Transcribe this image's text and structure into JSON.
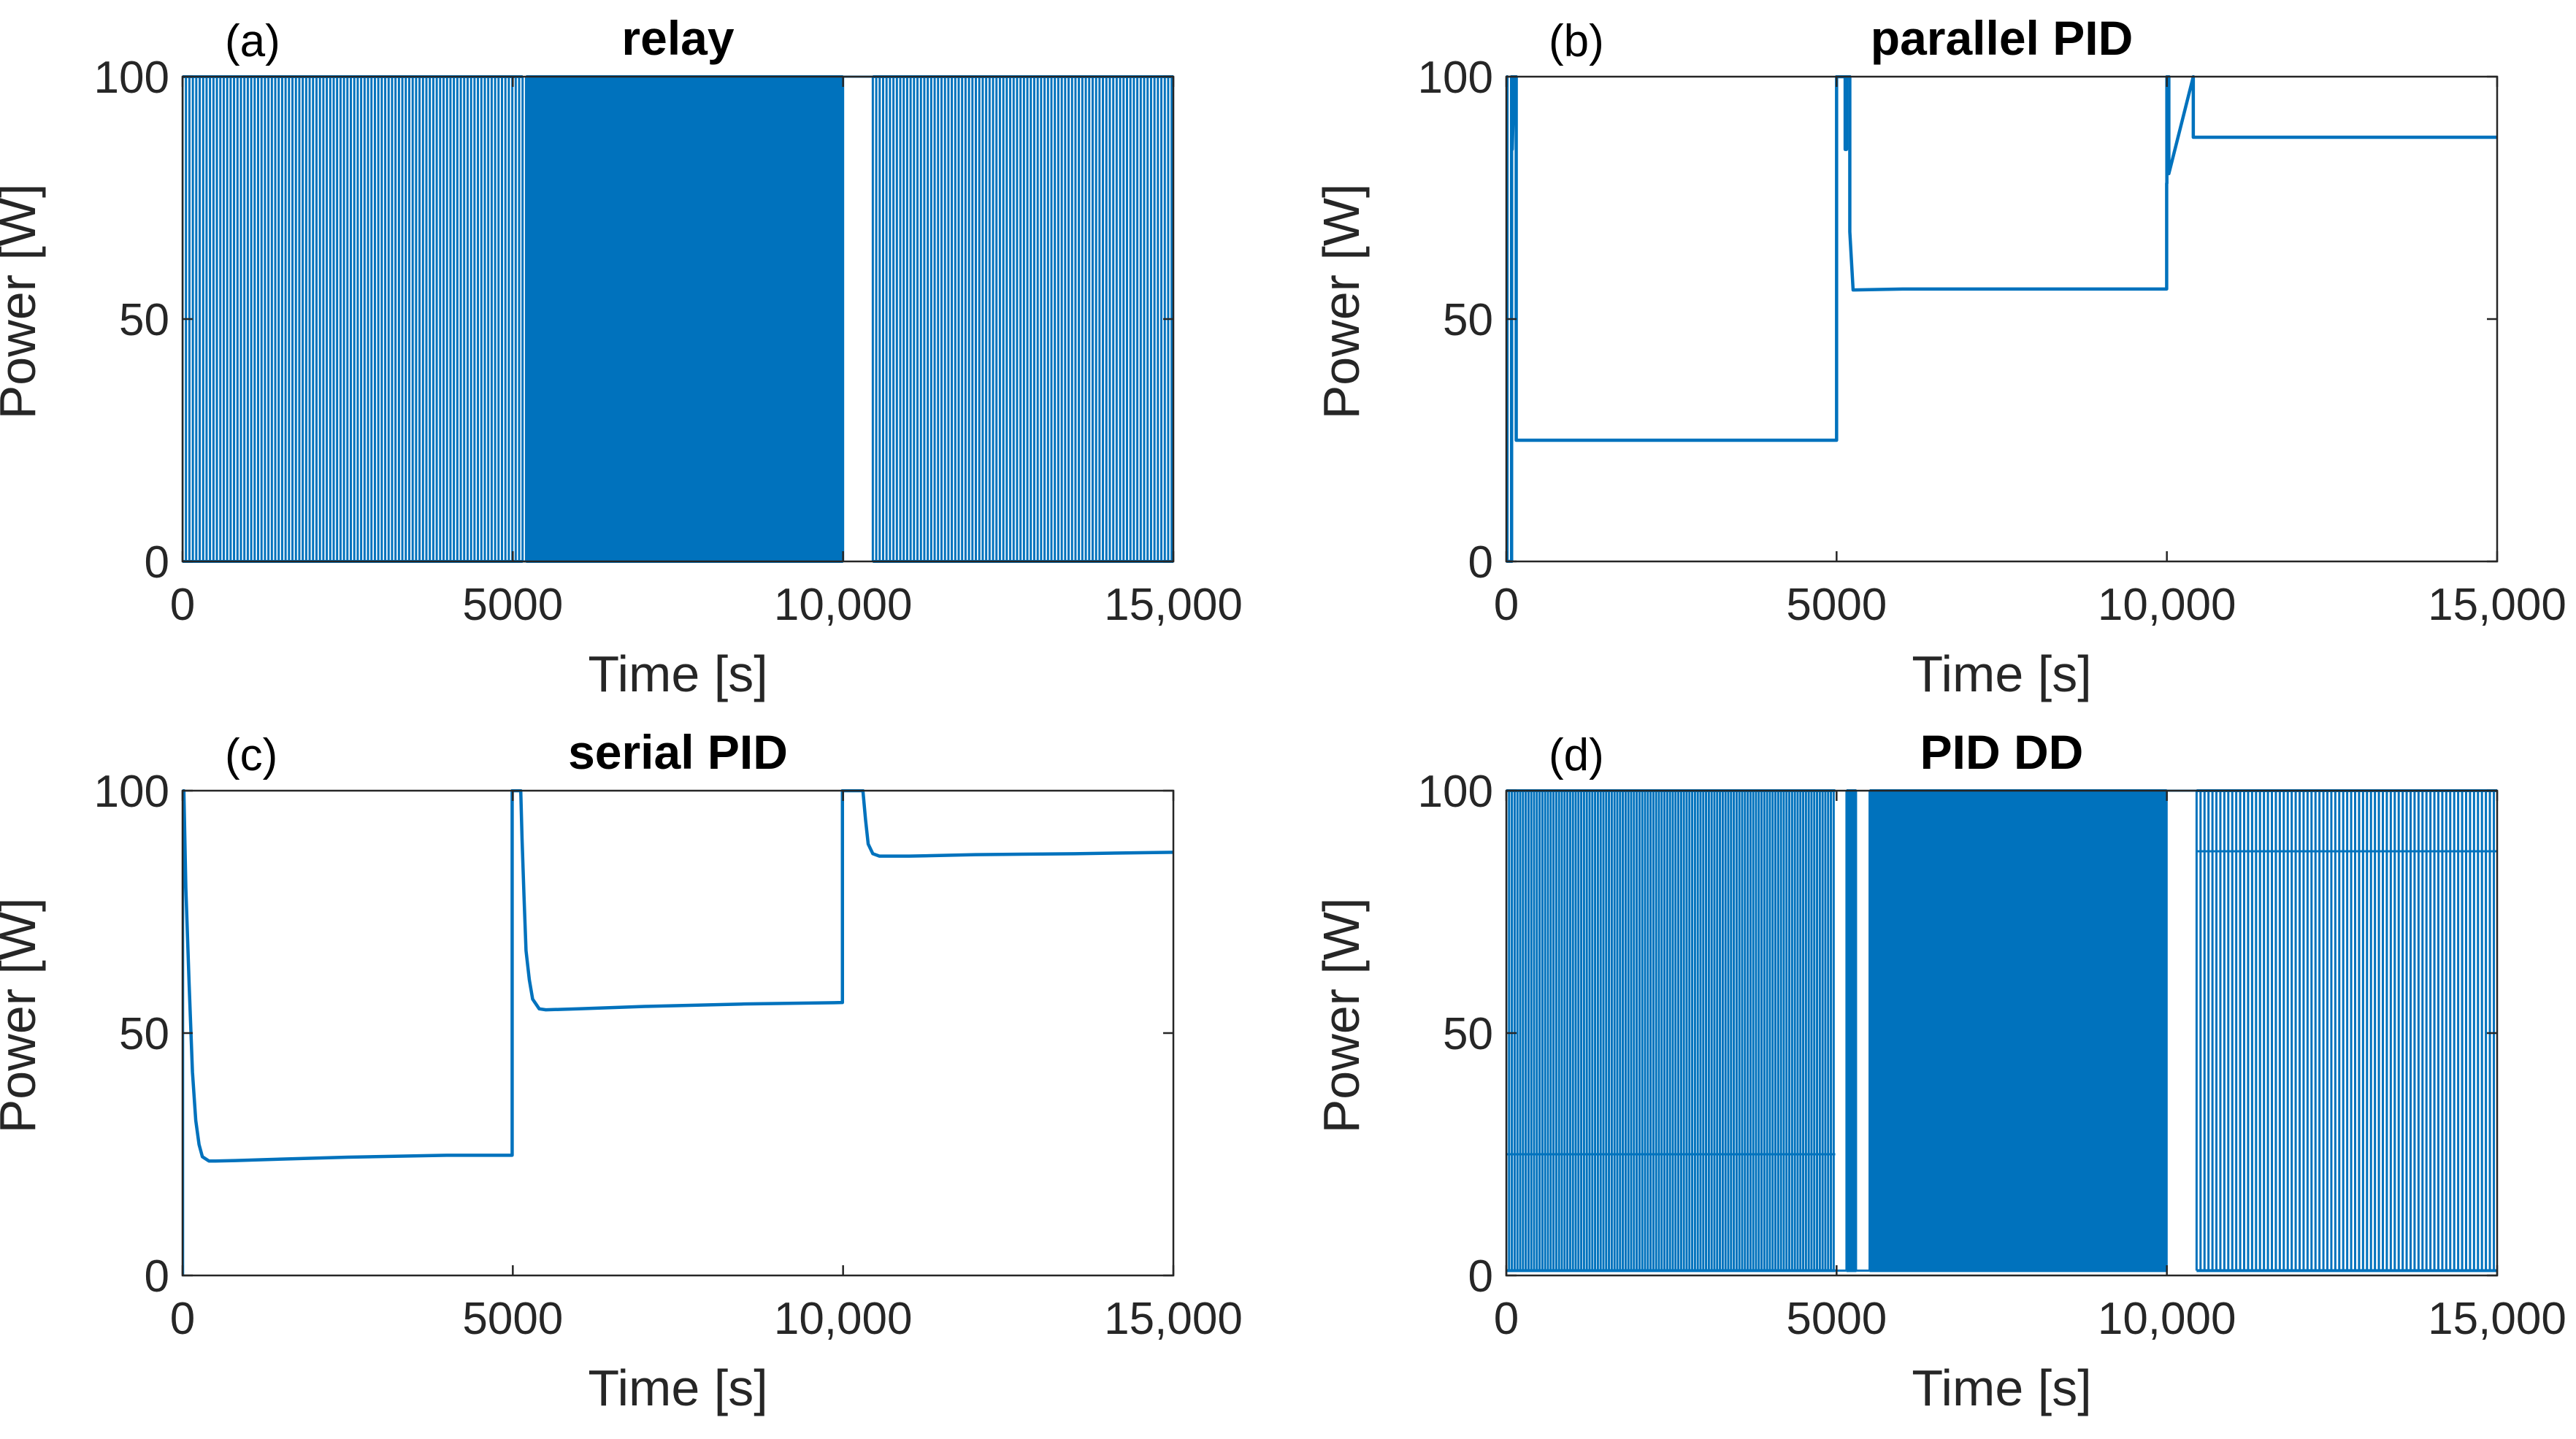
{
  "colors": {
    "series": "#0072BD",
    "axis": "#262626"
  },
  "chart_data": [
    {
      "type": "line",
      "panel_label": "(a)",
      "title": "relay",
      "xlabel": "Time [s]",
      "ylabel": "Power [W]",
      "xlim": [
        0,
        15000
      ],
      "ylim": [
        0,
        100
      ],
      "xticks": [
        0,
        5000,
        10000,
        15000
      ],
      "xtick_labels": [
        "0",
        "5000",
        "10,000",
        "15,000"
      ],
      "yticks": [
        0,
        50,
        100
      ],
      "ytick_labels": [
        "0",
        "50",
        "100"
      ],
      "description": "on/off relay switching between 0 and 100 W",
      "switching": [
        {
          "t_start": 0,
          "t_end": 5150,
          "low": 0,
          "high": 100,
          "period_s": 52
        },
        {
          "t_start": 5200,
          "t_end": 10000,
          "low": 0,
          "high": 100,
          "period_s": 8
        },
        {
          "t_start": 10450,
          "t_end": 15000,
          "low": 0,
          "high": 100,
          "period_s": 52
        }
      ],
      "segments": [
        {
          "x": [
            5150,
            5200
          ],
          "y": [
            0,
            0
          ]
        },
        {
          "x": [
            10000,
            10450
          ],
          "y": [
            100,
            100
          ]
        }
      ]
    },
    {
      "type": "line",
      "panel_label": "(b)",
      "title": "parallel PID",
      "xlabel": "Time [s]",
      "ylabel": "Power [W]",
      "xlim": [
        0,
        15000
      ],
      "ylim": [
        0,
        100
      ],
      "xticks": [
        0,
        5000,
        10000,
        15000
      ],
      "xtick_labels": [
        "0",
        "5000",
        "10,000",
        "15,000"
      ],
      "yticks": [
        0,
        50,
        100
      ],
      "ytick_labels": [
        "0",
        "50",
        "100"
      ],
      "series": [
        {
          "name": "power",
          "x": [
            0,
            0,
            10,
            10,
            80,
            80,
            90,
            90,
            120,
            150,
            150,
            5000,
            5000,
            5130,
            5130,
            5150,
            5150,
            5200,
            5200,
            5250,
            6000,
            9997,
            9997,
            10000,
            10000,
            10030,
            10030,
            10400,
            10400,
            15000
          ],
          "y": [
            0,
            100,
            100,
            0,
            0,
            100,
            100,
            85,
            100,
            100,
            25,
            25,
            100,
            100,
            85,
            85,
            100,
            100,
            68,
            56,
            56.2,
            56.2,
            78,
            78,
            100,
            100,
            80,
            100,
            87.5,
            87.5
          ]
        }
      ]
    },
    {
      "type": "line",
      "panel_label": "(c)",
      "title": "serial PID",
      "xlabel": "Time [s]",
      "ylabel": "Power [W]",
      "xlim": [
        0,
        15000
      ],
      "ylim": [
        0,
        100
      ],
      "xticks": [
        0,
        5000,
        10000,
        15000
      ],
      "xtick_labels": [
        "0",
        "5000",
        "10,000",
        "15,000"
      ],
      "yticks": [
        0,
        50,
        100
      ],
      "ytick_labels": [
        "0",
        "50",
        "100"
      ],
      "series": [
        {
          "name": "power",
          "x": [
            0,
            0,
            20,
            50,
            100,
            150,
            200,
            250,
            300,
            400,
            500,
            800,
            1500,
            2500,
            4000,
            4990,
            4990,
            5120,
            5140,
            5170,
            5200,
            5250,
            5300,
            5400,
            5500,
            6000,
            7000,
            8500,
            9990,
            9990,
            10300,
            10340,
            10380,
            10450,
            10550,
            11000,
            12000,
            13500,
            15000
          ],
          "y": [
            0,
            100,
            100,
            80,
            60,
            42,
            32,
            27,
            24.5,
            23.6,
            23.6,
            23.7,
            24,
            24.4,
            24.8,
            24.8,
            100,
            100,
            90,
            78,
            67,
            61,
            57,
            55,
            54.8,
            55,
            55.5,
            56,
            56.3,
            100,
            100,
            94,
            89,
            87,
            86.5,
            86.5,
            86.8,
            87,
            87.3
          ]
        }
      ]
    },
    {
      "type": "line",
      "panel_label": "(d)",
      "title": "PID DD",
      "xlabel": "Time [s]",
      "ylabel": "Power [W]",
      "xlim": [
        0,
        15000
      ],
      "ylim": [
        0,
        100
      ],
      "xticks": [
        0,
        5000,
        10000,
        15000
      ],
      "xtick_labels": [
        "0",
        "5000",
        "10,000",
        "15,000"
      ],
      "yticks": [
        0,
        50,
        100
      ],
      "ytick_labels": [
        "0",
        "50",
        "100"
      ],
      "description": "dithered switching around the PID output",
      "switching": [
        {
          "t_start": 0,
          "t_end": 4980,
          "low": 1,
          "high": 100,
          "period_s": 42
        },
        {
          "t_start": 5150,
          "t_end": 5300,
          "low": 1,
          "high": 100,
          "period_s": 8
        },
        {
          "t_start": 5500,
          "t_end": 10000,
          "low": 1,
          "high": 100,
          "period_s": 8
        },
        {
          "t_start": 10450,
          "t_end": 15000,
          "low": 1,
          "high": 100,
          "period_s": 60
        }
      ],
      "segments": [
        {
          "x": [
            0,
            4980
          ],
          "y": [
            25,
            25
          ]
        },
        {
          "x": [
            10450,
            15000
          ],
          "y": [
            87.5,
            87.5
          ]
        },
        {
          "x": [
            4980,
            5150
          ],
          "y": [
            1,
            1
          ]
        },
        {
          "x": [
            5300,
            5500
          ],
          "y": [
            1,
            1
          ]
        },
        {
          "x": [
            10000,
            10450
          ],
          "y": [
            100,
            100
          ]
        }
      ]
    }
  ]
}
